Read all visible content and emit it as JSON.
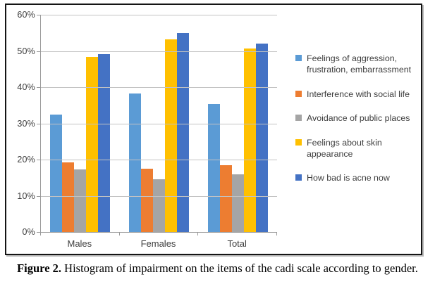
{
  "caption": {
    "label": "Figure 2.",
    "text": " Histogram of impairment on the items of the cadi scale according to gender."
  },
  "chart_data": {
    "type": "bar",
    "title": "",
    "categories": [
      "Males",
      "Females",
      "Total"
    ],
    "series": [
      {
        "name": "Feelings of aggression, frustration, embarrassment",
        "color": "#5B9BD5",
        "values": [
          32.5,
          38.3,
          35.4
        ]
      },
      {
        "name": "Interference with social life",
        "color": "#ED7D31",
        "values": [
          19.3,
          17.4,
          18.5
        ]
      },
      {
        "name": "Avoidance of public places",
        "color": "#A5A5A5",
        "values": [
          17.2,
          14.5,
          16.0
        ]
      },
      {
        "name": "Feelings about skin appearance",
        "color": "#FFC000",
        "values": [
          48.3,
          53.2,
          50.7
        ]
      },
      {
        "name": "How bad is acne now",
        "color": "#4472C4",
        "values": [
          49.1,
          55.0,
          52.0
        ]
      }
    ],
    "xlabel": "",
    "ylabel": "",
    "ylim": [
      0,
      60
    ],
    "ytick_step": 10,
    "ytick_labels": [
      "0%",
      "10%",
      "20%",
      "30%",
      "40%",
      "50%",
      "60%"
    ],
    "grid": true,
    "legend_position": "right"
  }
}
